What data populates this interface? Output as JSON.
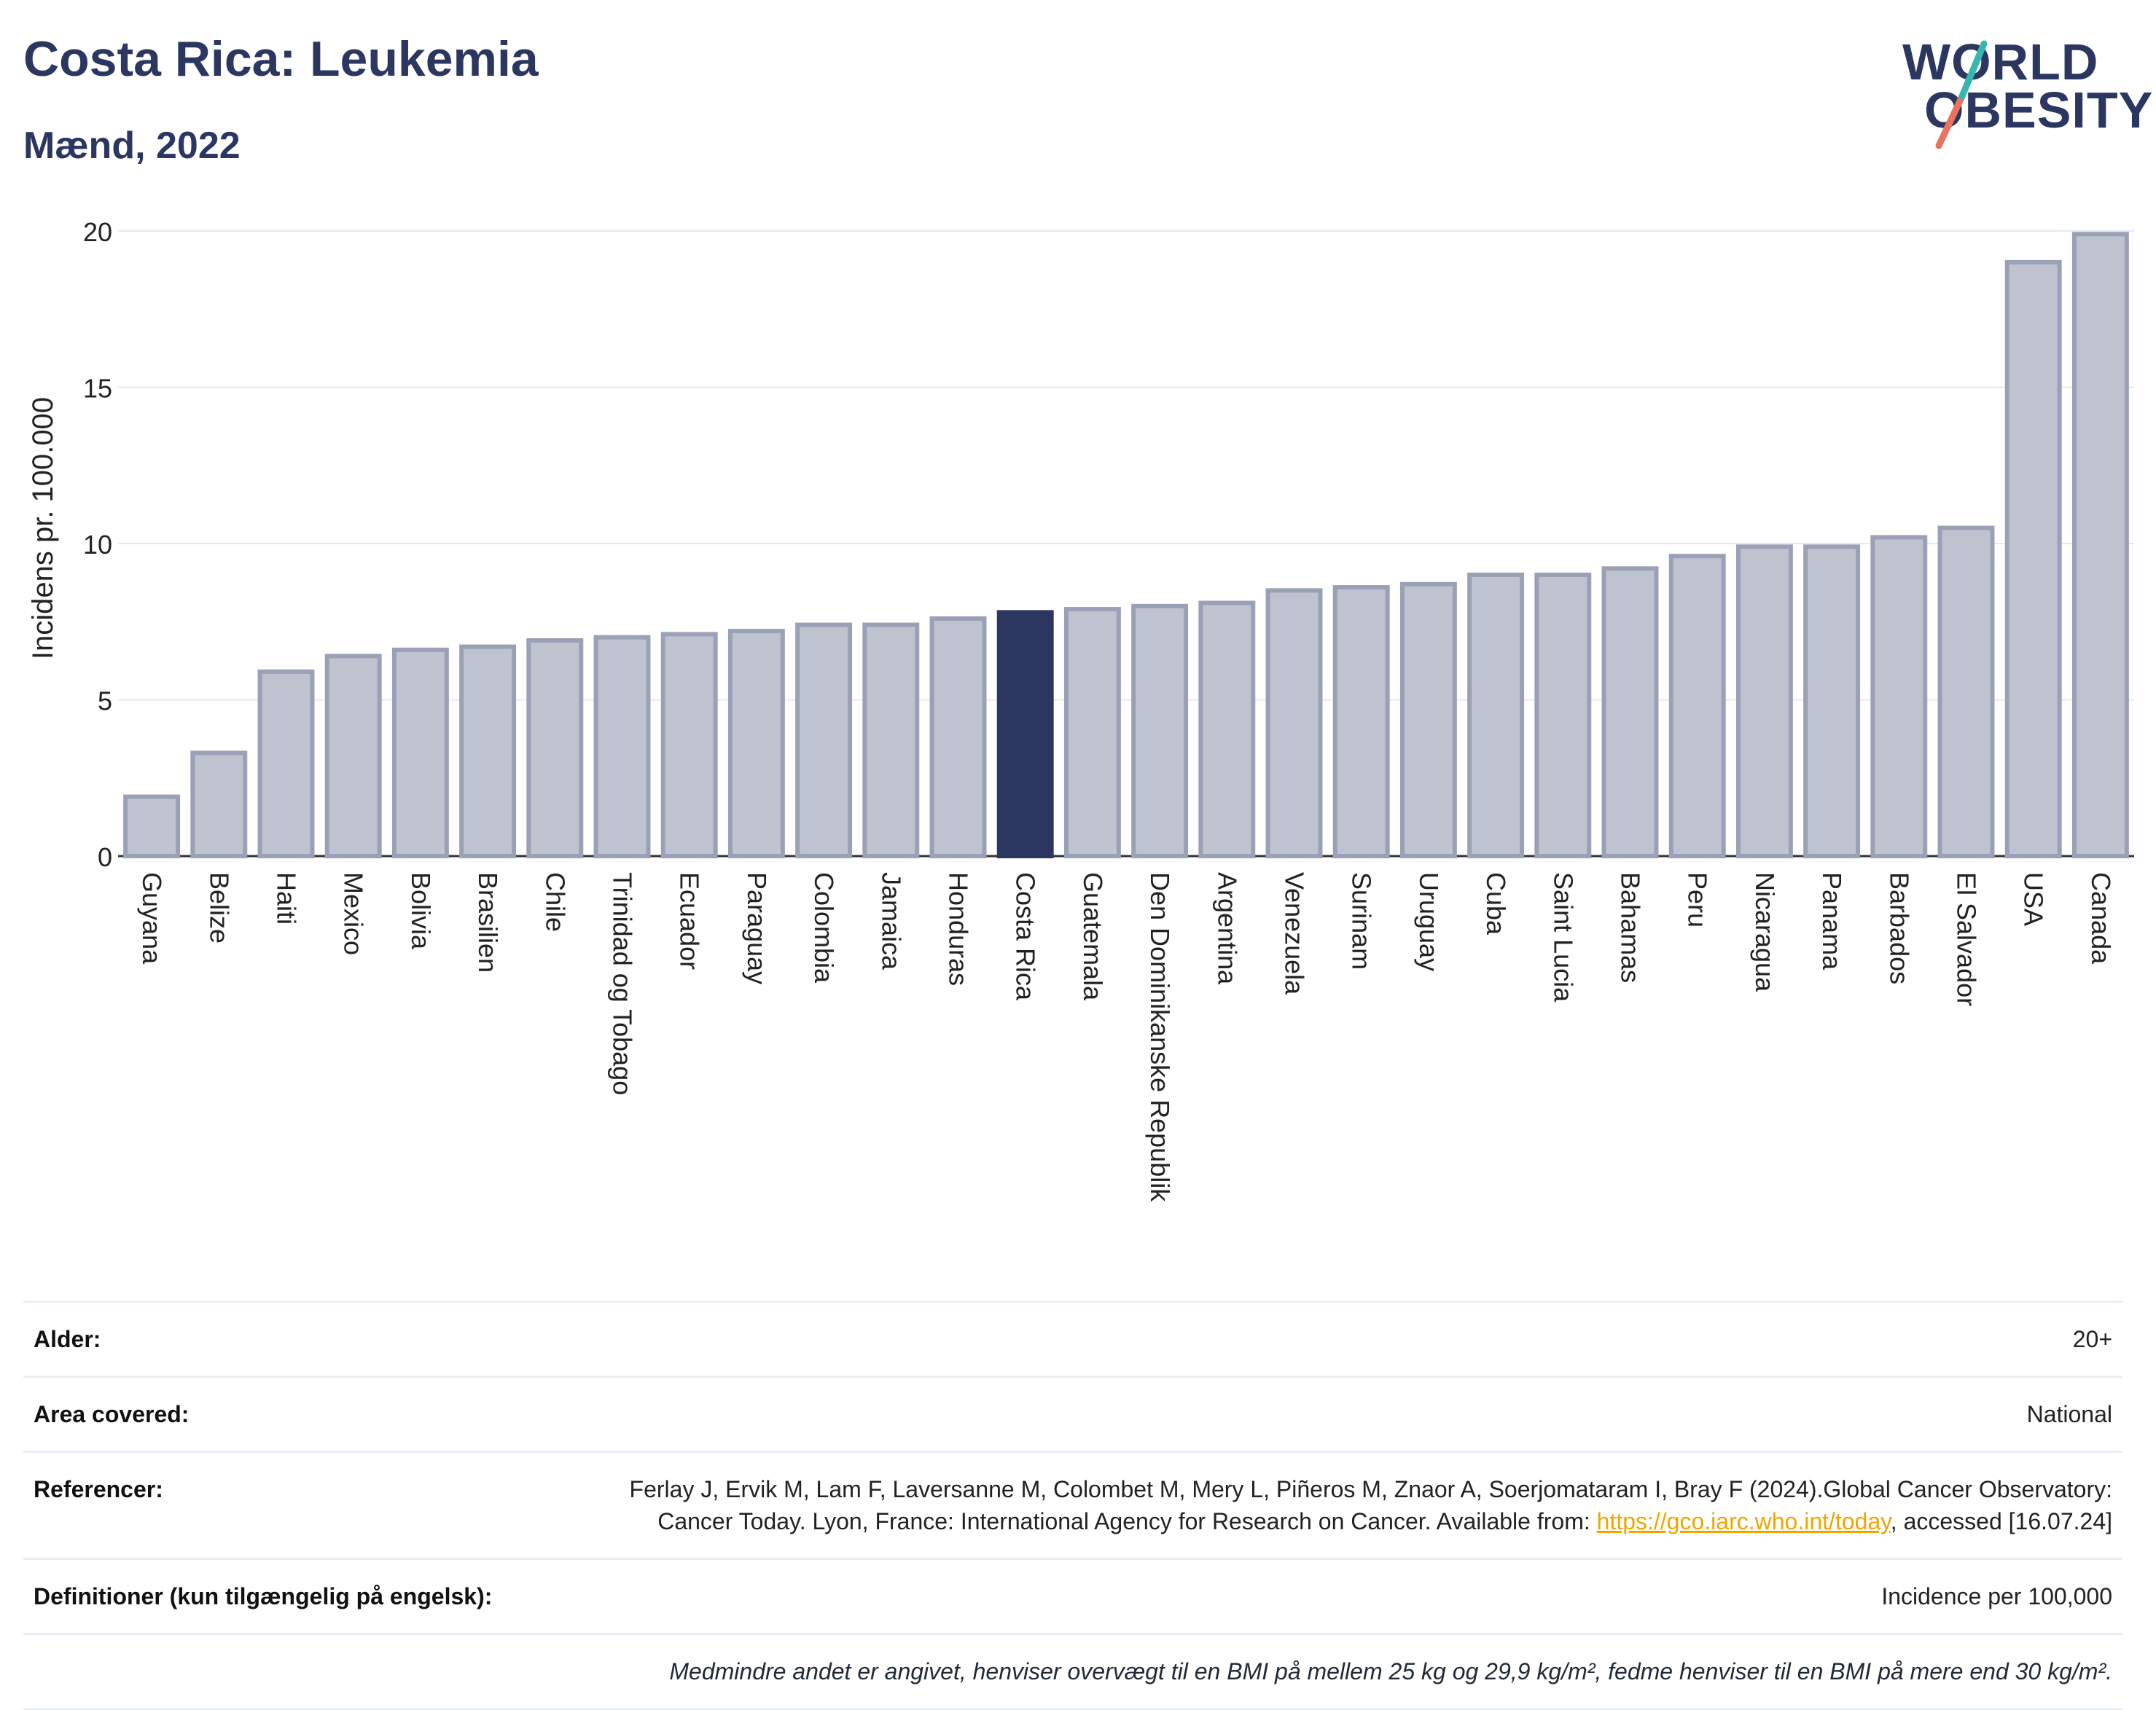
{
  "header": {
    "title": "Costa Rica: Leukemia",
    "subtitle": "Mænd, 2022"
  },
  "logo": {
    "line1": "WORLD",
    "line2": "OBESITY"
  },
  "colors": {
    "highlight": "#2b3661",
    "bar": "#bfc3d0",
    "bar_border": "#9aa0b5",
    "title": "#2b3661",
    "link": "#f0a500"
  },
  "chart_data": {
    "type": "bar",
    "ylabel": "Incidens pr. 100.000",
    "ylim": [
      0,
      20
    ],
    "yticks": [
      0,
      5,
      10,
      15,
      20
    ],
    "grid": true,
    "highlight": "Costa Rica",
    "categories": [
      "Guyana",
      "Belize",
      "Haiti",
      "Mexico",
      "Bolivia",
      "Brasilien",
      "Chile",
      "Trinidad og Tobago",
      "Ecuador",
      "Paraguay",
      "Colombia",
      "Jamaica",
      "Honduras",
      "Costa Rica",
      "Guatemala",
      "Den Dominikanske Republik",
      "Argentina",
      "Venezuela",
      "Surinam",
      "Uruguay",
      "Cuba",
      "Saint Lucia",
      "Bahamas",
      "Peru",
      "Nicaragua",
      "Panama",
      "Barbados",
      "El Salvador",
      "USA",
      "Canada"
    ],
    "values": [
      1.9,
      3.3,
      5.9,
      6.4,
      6.6,
      6.7,
      6.9,
      7.0,
      7.1,
      7.2,
      7.4,
      7.4,
      7.6,
      7.8,
      7.9,
      8.0,
      8.1,
      8.5,
      8.6,
      8.7,
      9.0,
      9.0,
      9.2,
      9.6,
      9.9,
      9.9,
      10.2,
      10.5,
      19.0,
      19.9
    ]
  },
  "meta": {
    "age_label": "Alder:",
    "age_value": "20+",
    "area_label": "Area covered:",
    "area_value": "National",
    "ref_label": "Referencer:",
    "ref_text_1": "Ferlay J, Ervik M, Lam F, Laversanne M, Colombet M, Mery L, Piñeros M, Znaor A, Soerjomataram I, Bray F (2024).Global Cancer Observatory: Cancer Today. Lyon, France: International Agency for Research on Cancer. Available from: ",
    "ref_link": "https://gco.iarc.who.int/today",
    "ref_text_2": ", accessed [16.07.24]",
    "def_label": "Definitioner (kun tilgængelig på engelsk):",
    "def_value": "Incidence per 100,000",
    "note": "Medmindre andet er angivet, henviser overvægt til en BMI på mellem 25 kg og 29,9 kg/m², fedme henviser til en BMI på mere end 30 kg/m²."
  }
}
